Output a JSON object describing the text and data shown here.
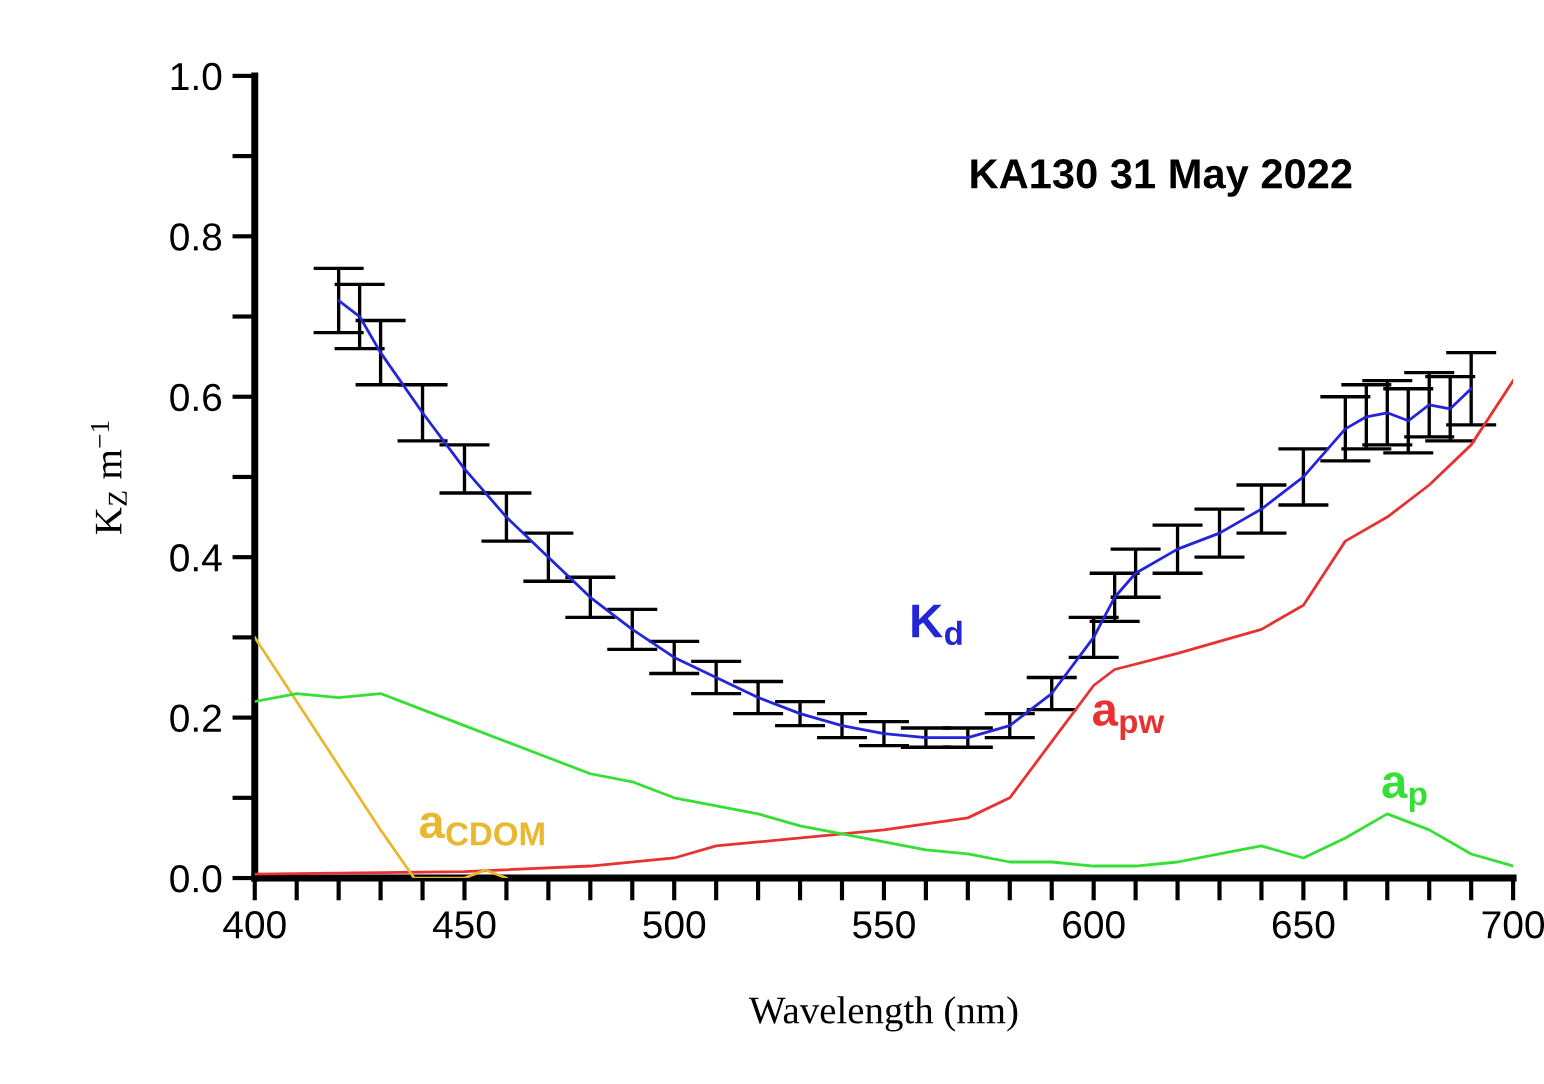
{
  "chart_data": {
    "type": "line",
    "title": "KA130 31 May 2022",
    "xlabel": "Wavelength (nm)",
    "ylabel": "K$_{Z}$ m$^{−1}$",
    "xlim": [
      400,
      700
    ],
    "ylim": [
      0,
      1
    ],
    "xticks": [
      400,
      {
        "value": 410,
        "label": null
      },
      {
        "value": 420,
        "label": null
      },
      {
        "value": 430,
        "label": null
      },
      {
        "value": 440,
        "label": null
      },
      450,
      {
        "value": 460,
        "label": null
      },
      {
        "value": 470,
        "label": null
      },
      {
        "value": 480,
        "label": null
      },
      {
        "value": 490,
        "label": null
      },
      500,
      {
        "value": 510,
        "label": null
      },
      {
        "value": 520,
        "label": null
      },
      {
        "value": 530,
        "label": null
      },
      {
        "value": 540,
        "label": null
      },
      550,
      {
        "value": 560,
        "label": null
      },
      {
        "value": 570,
        "label": null
      },
      {
        "value": 580,
        "label": null
      },
      {
        "value": 590,
        "label": null
      },
      600,
      {
        "value": 610,
        "label": null
      },
      {
        "value": 620,
        "label": null
      },
      {
        "value": 630,
        "label": null
      },
      {
        "value": 640,
        "label": null
      },
      650,
      {
        "value": 660,
        "label": null
      },
      {
        "value": 670,
        "label": null
      },
      {
        "value": 680,
        "label": null
      },
      {
        "value": 690,
        "label": null
      },
      700
    ],
    "yticks": [
      {
        "value": 0,
        "label": "0.0"
      },
      {
        "value": 0.1,
        "label": null
      },
      {
        "value": 0.2,
        "label": "0.2"
      },
      {
        "value": 0.3,
        "label": null
      },
      {
        "value": 0.4,
        "label": "0.4"
      },
      {
        "value": 0.5,
        "label": null
      },
      {
        "value": 0.6,
        "label": "0.6"
      },
      {
        "value": 0.7,
        "label": null
      },
      {
        "value": 0.8,
        "label": "0.8"
      },
      {
        "value": 0.9,
        "label": null
      },
      {
        "value": 1.0,
        "label": "1.0"
      }
    ],
    "grid": false,
    "legend": false,
    "series": [
      {
        "name": "K$_{d}$",
        "color": "#2424d8",
        "x": [
          420,
          425,
          430,
          440,
          450,
          460,
          470,
          480,
          490,
          500,
          510,
          520,
          530,
          540,
          550,
          560,
          570,
          580,
          590,
          600,
          605,
          610,
          620,
          630,
          640,
          650,
          660,
          665,
          670,
          675,
          680,
          685,
          690
        ],
        "values": [
          0.72,
          0.7,
          0.655,
          0.58,
          0.51,
          0.45,
          0.4,
          0.35,
          0.31,
          0.275,
          0.25,
          0.225,
          0.205,
          0.19,
          0.18,
          0.175,
          0.175,
          0.19,
          0.23,
          0.3,
          0.35,
          0.38,
          0.41,
          0.43,
          0.46,
          0.5,
          0.56,
          0.575,
          0.58,
          0.57,
          0.59,
          0.585,
          0.61
        ],
        "errors": [
          0.04,
          0.04,
          0.04,
          0.035,
          0.03,
          0.03,
          0.03,
          0.025,
          0.025,
          0.02,
          0.02,
          0.02,
          0.015,
          0.015,
          0.015,
          0.012,
          0.012,
          0.015,
          0.02,
          0.025,
          0.03,
          0.03,
          0.03,
          0.03,
          0.03,
          0.035,
          0.04,
          0.04,
          0.04,
          0.04,
          0.04,
          0.04,
          0.045
        ]
      },
      {
        "name": "a$_{pw}$",
        "color": "#e83232",
        "x": [
          400,
          450,
          480,
          500,
          510,
          550,
          570,
          580,
          590,
          600,
          605,
          620,
          640,
          650,
          660,
          670,
          680,
          690,
          700
        ],
        "values": [
          0.005,
          0.008,
          0.015,
          0.025,
          0.04,
          0.06,
          0.075,
          0.1,
          0.17,
          0.24,
          0.26,
          0.28,
          0.31,
          0.34,
          0.42,
          0.45,
          0.49,
          0.54,
          0.62
        ]
      },
      {
        "name": "a$_{CDOM}$",
        "color": "#e8b830",
        "x": [
          400,
          410,
          420,
          430,
          438,
          450,
          455,
          460
        ],
        "values": [
          0.3,
          0.22,
          0.14,
          0.06,
          0.0,
          0.0,
          0.01,
          0.0
        ]
      },
      {
        "name": "a$_{p}$",
        "color": "#33e033",
        "x": [
          400,
          410,
          420,
          430,
          440,
          450,
          460,
          470,
          480,
          490,
          500,
          510,
          520,
          530,
          540,
          550,
          560,
          570,
          580,
          590,
          600,
          610,
          620,
          630,
          640,
          650,
          660,
          670,
          675,
          680,
          690,
          700
        ],
        "values": [
          0.22,
          0.23,
          0.225,
          0.23,
          0.21,
          0.19,
          0.17,
          0.15,
          0.13,
          0.12,
          0.1,
          0.09,
          0.08,
          0.065,
          0.055,
          0.045,
          0.035,
          0.03,
          0.02,
          0.02,
          0.015,
          0.015,
          0.02,
          0.03,
          0.04,
          0.025,
          0.05,
          0.08,
          0.07,
          0.06,
          0.03,
          0.015
        ]
      }
    ]
  }
}
